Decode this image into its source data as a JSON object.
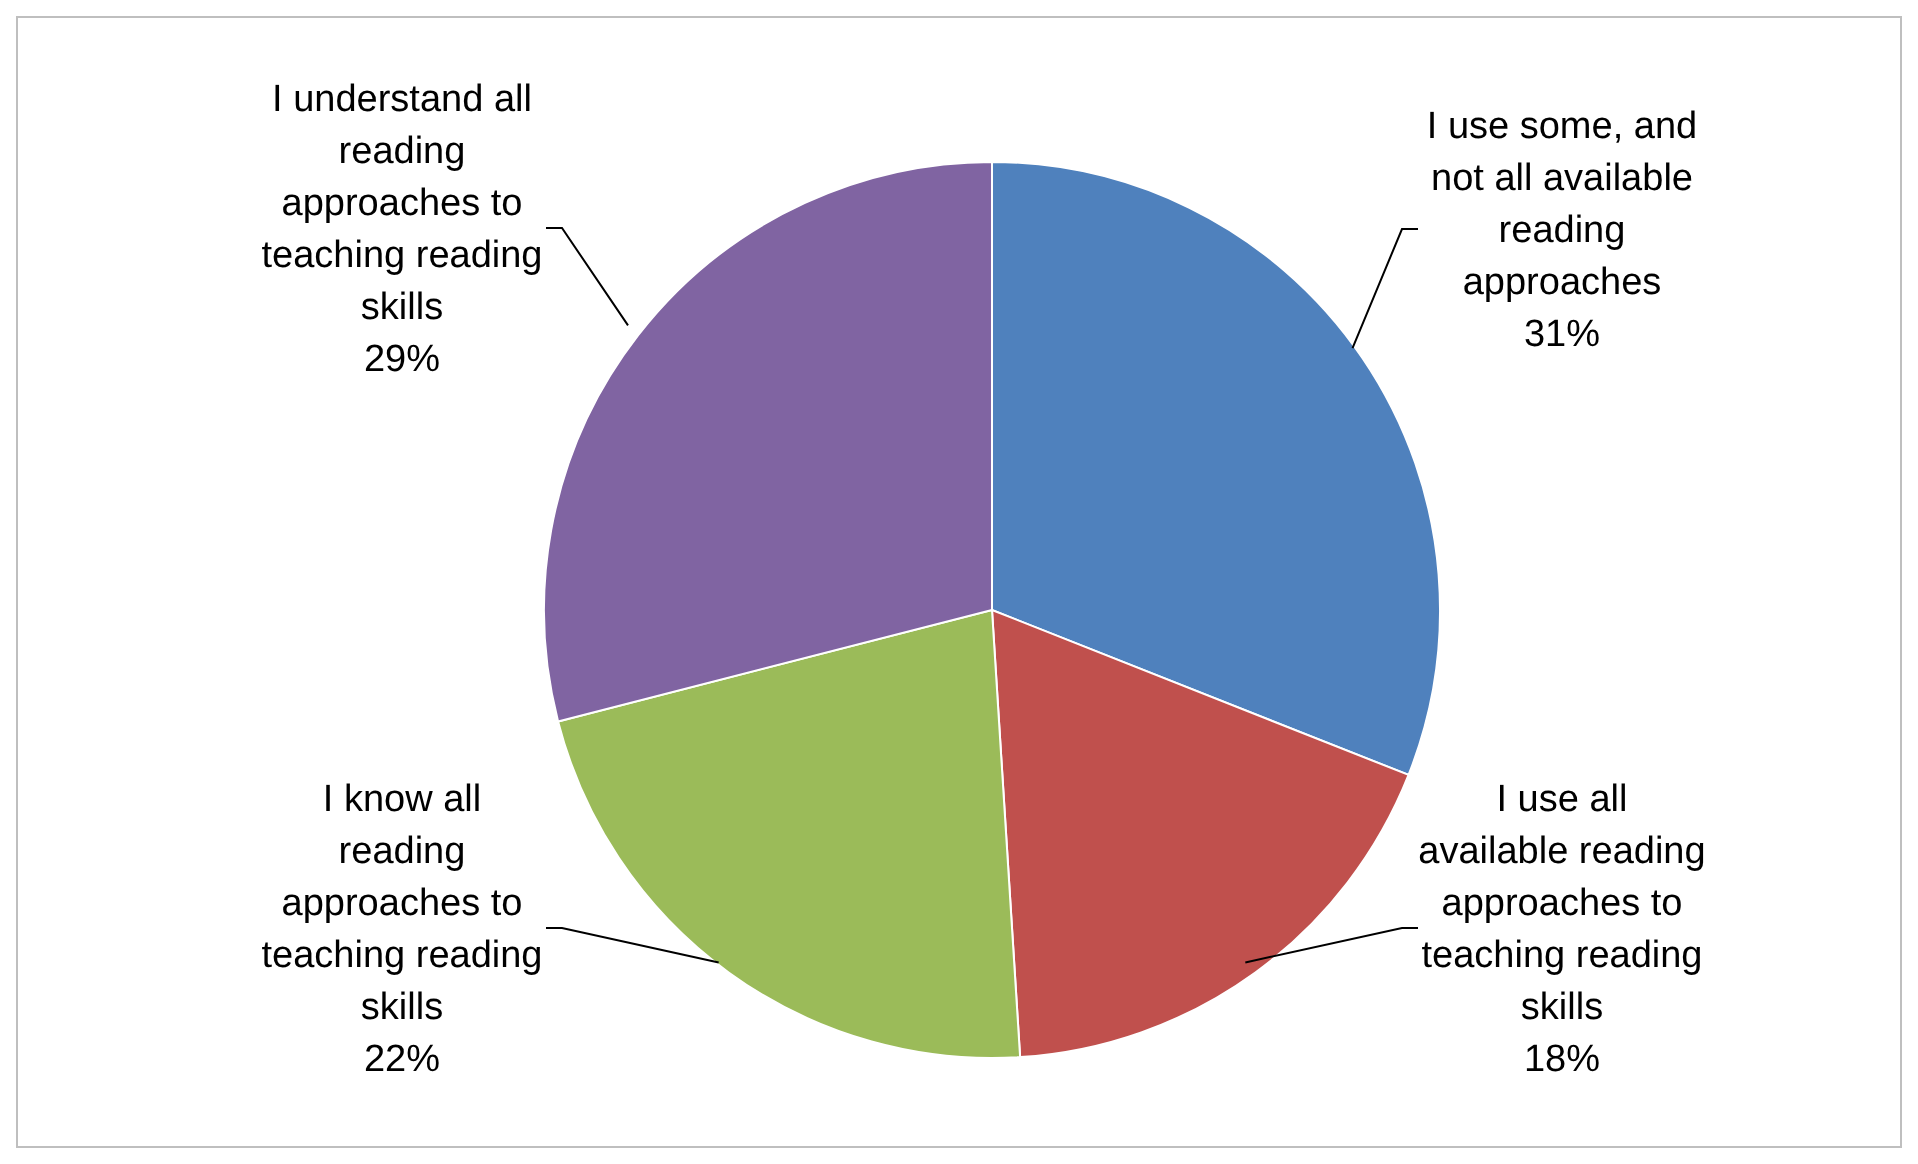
{
  "chart_data": {
    "type": "pie",
    "categories": [
      "I use some, and not all available reading approaches",
      "I use all available reading approaches to teaching reading skills",
      "I know all reading approaches to teaching reading skills",
      "I understand all reading approaches to teaching reading skills"
    ],
    "values": [
      31,
      18,
      22,
      29
    ],
    "colors": [
      "#4f81bd",
      "#c0504d",
      "#9bbb59",
      "#8064a2"
    ],
    "value_labels": [
      "31%",
      "18%",
      "22%",
      "29%"
    ],
    "legend": false
  }
}
